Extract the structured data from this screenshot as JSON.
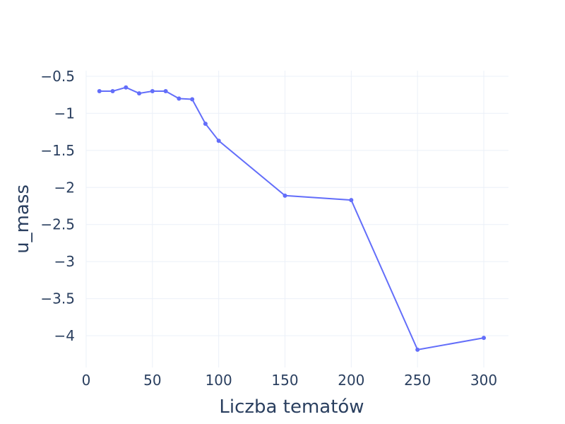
{
  "chart_data": {
    "type": "line",
    "xlabel": "Liczba tematów",
    "ylabel": "u_mass",
    "xlim": [
      -5,
      320
    ],
    "ylim": [
      -4.36,
      -0.44
    ],
    "xticks": [
      0,
      50,
      100,
      150,
      200,
      250,
      300
    ],
    "xtick_labels": [
      "0",
      "50",
      "100",
      "150",
      "200",
      "250",
      "300"
    ],
    "yticks": [
      -0.5,
      -1,
      -1.5,
      -2,
      -2.5,
      -3,
      -3.5,
      -4
    ],
    "ytick_labels": [
      "−0.5",
      "−1",
      "−1.5",
      "−2",
      "−2.5",
      "−3",
      "−3.5",
      "−4"
    ],
    "grid": true,
    "color": "#636efa",
    "series": [
      {
        "x": [
          10,
          20,
          30,
          40,
          50,
          60,
          70,
          80,
          90,
          100,
          150,
          200,
          250,
          300
        ],
        "y": [
          -0.7,
          -0.7,
          -0.65,
          -0.73,
          -0.7,
          -0.7,
          -0.8,
          -0.81,
          -1.14,
          -1.37,
          -2.11,
          -2.17,
          -4.19,
          -4.03
        ]
      }
    ]
  }
}
